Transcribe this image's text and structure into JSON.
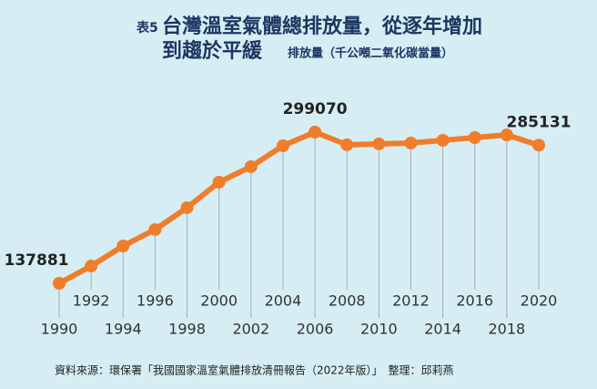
{
  "chart_data": {
    "type": "line",
    "title_prefix": "表5",
    "title": [
      "台灣溫室氣體總排放量，從逐年增加",
      "到趨於平緩"
    ],
    "subtitle": "排放量（千公噸二氧化碳當量）",
    "source": "資料來源：環保署「我國國家溫室氣體排放清冊報告（2022年版）」　整理：邱莉燕",
    "categories": [
      "1990",
      "1992",
      "1994",
      "1996",
      "1998",
      "2000",
      "2002",
      "2004",
      "2006",
      "2008",
      "2010",
      "2012",
      "2014",
      "2016",
      "2018",
      "2020"
    ],
    "values": [
      137881,
      156300,
      177700,
      195200,
      218500,
      245700,
      262200,
      284500,
      299070,
      285500,
      286500,
      287400,
      290300,
      293200,
      296000,
      285131
    ],
    "color": "#f07d2b"
  }
}
